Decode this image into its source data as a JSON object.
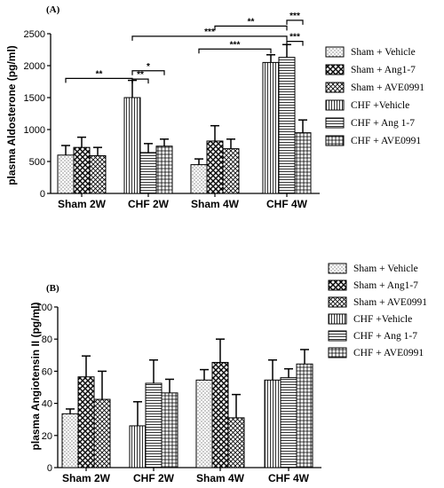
{
  "chart_data": [
    {
      "type": "bar",
      "panel_label": "(A)",
      "ylabel": "plasma Aldosterone (pg/ml)",
      "ylim": [
        0,
        2500
      ],
      "yticks": [
        0,
        500,
        1000,
        1500,
        2000,
        2500
      ],
      "categories": [
        "Sham 2W",
        "CHF 2W",
        "Sham 4W",
        "CHF 4W"
      ],
      "series": [
        {
          "name": "Sham + Vehicle",
          "values": [
            600,
            1500,
            450,
            2050
          ],
          "errors": [
            150,
            270,
            90,
            120
          ]
        },
        {
          "name": "Sham + Ang1-7",
          "values": [
            720,
            640,
            820,
            2130
          ],
          "errors": [
            160,
            140,
            240,
            200
          ]
        },
        {
          "name": "Sham + AVE0991",
          "values": [
            590,
            740,
            700,
            950
          ],
          "errors": [
            130,
            110,
            150,
            200
          ]
        }
      ],
      "legend": [
        "Sham + Vehicle",
        "Sham + Ang1-7",
        "Sham + AVE0991",
        "CHF +Vehicle",
        "CHF + Ang 1-7",
        "CHF + AVE0991"
      ],
      "significance": [
        {
          "label": "**",
          "from": [
            0,
            0
          ],
          "to": [
            1,
            0
          ],
          "level": 1800
        },
        {
          "label": "*",
          "from": [
            1,
            0
          ],
          "to": [
            1,
            2
          ],
          "level": 1920
        },
        {
          "label": "**",
          "from": [
            1,
            0
          ],
          "to": [
            1,
            1
          ],
          "level": 1790
        },
        {
          "label": "***",
          "from": [
            1,
            0
          ],
          "to": [
            3,
            1
          ],
          "level": 2460
        },
        {
          "label": "***",
          "from": [
            2,
            0
          ],
          "to": [
            3,
            0
          ],
          "level": 2260
        },
        {
          "label": "**",
          "from": [
            2,
            1
          ],
          "to": [
            3,
            1
          ],
          "level": 2620
        },
        {
          "label": "***",
          "from": [
            3,
            1
          ],
          "to": [
            3,
            2
          ],
          "level": 2710
        },
        {
          "label": "***",
          "from": [
            3,
            1
          ],
          "to": [
            3,
            2
          ],
          "level": 2380
        }
      ]
    },
    {
      "type": "bar",
      "panel_label": "(B)",
      "ylabel": "plasma Angiotensin II (pg/ml)",
      "ylim": [
        0,
        100
      ],
      "yticks": [
        0,
        20,
        40,
        60,
        80,
        100
      ],
      "categories": [
        "Sham 2W",
        "CHF 2W",
        "Sham 4W",
        "CHF 4W"
      ],
      "series": [
        {
          "name": "Sham + Vehicle",
          "values": [
            33.5,
            26,
            54.5,
            54.5
          ],
          "errors": [
            3,
            15,
            6.5,
            12.5
          ]
        },
        {
          "name": "Sham + Ang1-7",
          "values": [
            56.5,
            52.5,
            65.5,
            56
          ],
          "errors": [
            13,
            14.5,
            14.5,
            5.5
          ]
        },
        {
          "name": "Sham + AVE0991",
          "values": [
            42.5,
            46.5,
            31,
            64.5
          ],
          "errors": [
            17.5,
            8.5,
            14.5,
            9
          ]
        }
      ],
      "legend": [
        "Sham + Vehicle",
        "Sham + Ang1-7",
        "Sham + AVE0991",
        "CHF +Vehicle",
        "CHF + Ang 1-7",
        "CHF + AVE0991"
      ],
      "significance": []
    }
  ]
}
